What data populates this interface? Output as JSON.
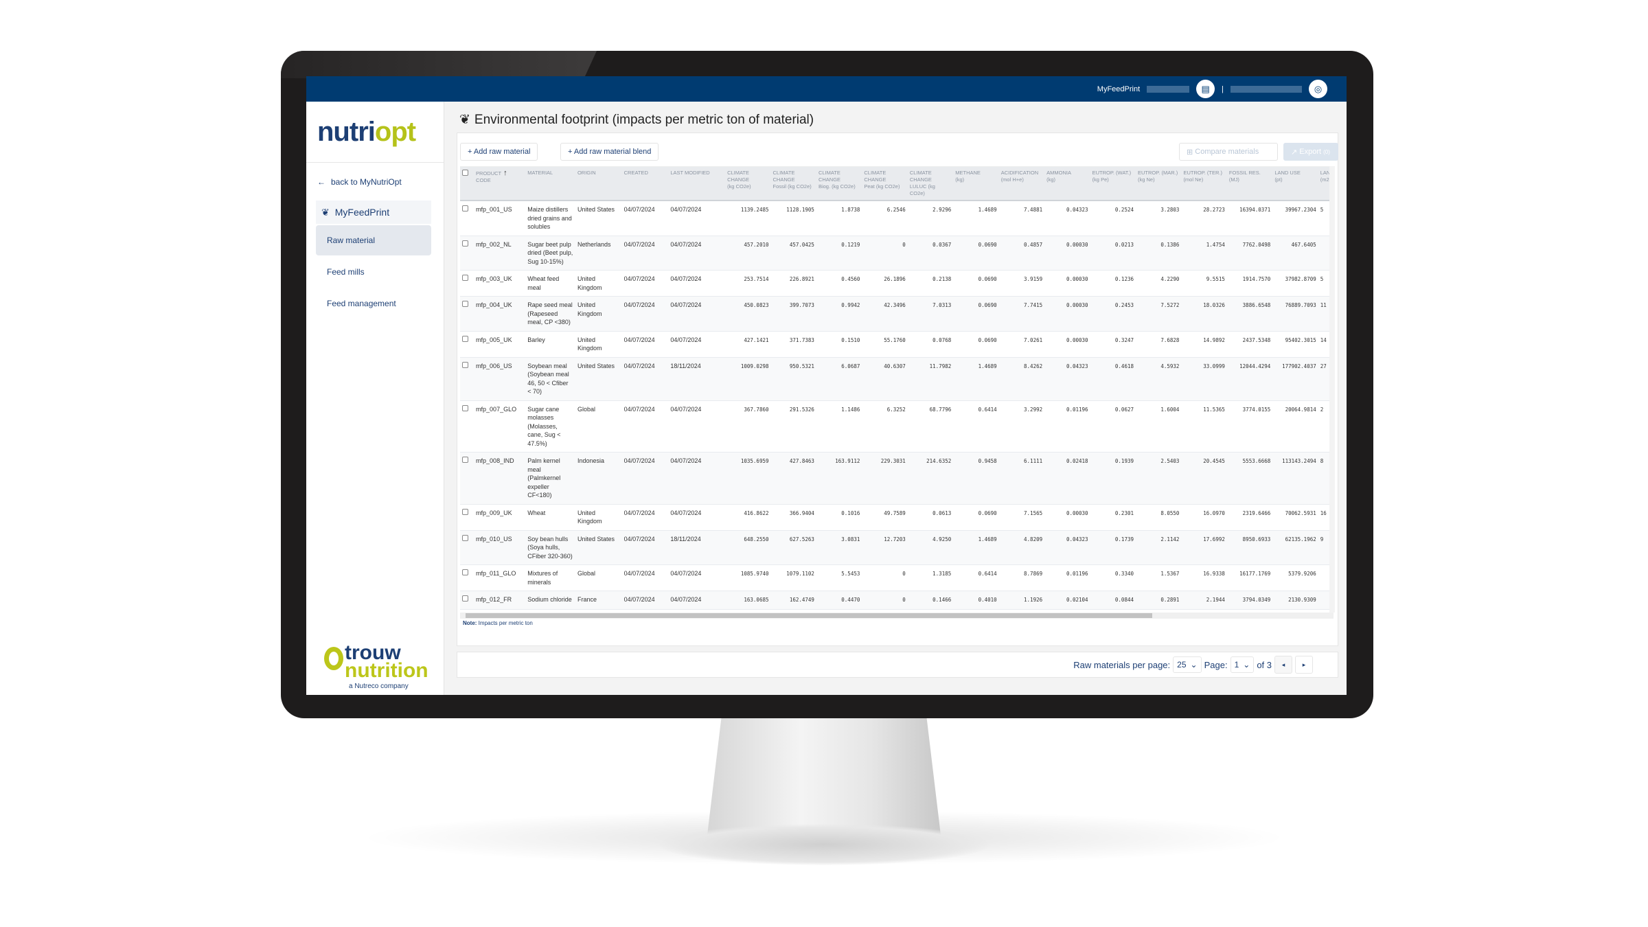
{
  "topbar": {
    "app_label": "MyFeedPrint",
    "separator": "|",
    "icons": [
      "building-icon",
      "user-circle-icon"
    ]
  },
  "sidebar": {
    "logo_text": [
      "nutri",
      "o",
      "pt"
    ],
    "back_label": "back to MyNutriOpt",
    "section_label": "MyFeedPrint",
    "items": [
      {
        "label": "Raw material",
        "active": true
      },
      {
        "label": "Feed mills",
        "active": false
      },
      {
        "label": "Feed management",
        "active": false
      }
    ],
    "footer_logo": {
      "line1": "trouw",
      "line2": "nutrition",
      "line3": "a Nutreco company"
    }
  },
  "page": {
    "title": "Environmental footprint (impacts per metric ton of material)"
  },
  "toolbar": {
    "add_raw_material": "+ Add raw material",
    "add_blend": "+ Add raw material blend",
    "compare": "Compare materials",
    "export": "Export",
    "export_count": "(0)"
  },
  "table": {
    "columns": [
      [
        "PRODUCT",
        "CODE"
      ],
      [
        "MATERIAL",
        ""
      ],
      [
        "ORIGIN",
        ""
      ],
      [
        "CREATED",
        ""
      ],
      [
        "LAST MODIFIED",
        ""
      ],
      [
        "CLIMATE CHANGE",
        "(kg CO2e)"
      ],
      [
        "CLIMATE CHANGE",
        "Fossil (kg CO2e)"
      ],
      [
        "CLIMATE CHANGE",
        "Biog. (kg CO2e)"
      ],
      [
        "CLIMATE CHANGE",
        "Peat (kg CO2e)"
      ],
      [
        "CLIMATE CHANGE",
        "LULUC (kg CO2e)"
      ],
      [
        "METHANE",
        "(kg)"
      ],
      [
        "ACIDIFICATION",
        "(mol H+e)"
      ],
      [
        "AMMONIA",
        "(kg)"
      ],
      [
        "EUTROP. (WAT.)",
        "(kg Pe)"
      ],
      [
        "EUTROP. (MAR.)",
        "(kg Ne)"
      ],
      [
        "EUTROP. (TER.)",
        "(mol Ne)"
      ],
      [
        "FOSSIL RES.",
        "(MJ)"
      ],
      [
        "LAND USE",
        "(pt)"
      ],
      [
        "LAND U",
        "(m2a"
      ]
    ],
    "sort_indicator": "↑",
    "rows": [
      [
        "mfp_001_US",
        "Maize distillers dried grains and solubles",
        "United States",
        "04/07/2024",
        "04/07/2024",
        "1139.2485",
        "1128.1905",
        "1.8738",
        "6.2546",
        "2.9296",
        "1.4689",
        "7.4881",
        "0.04323",
        "0.2524",
        "3.2803",
        "28.2723",
        "16394.0371",
        "39967.2304",
        "5"
      ],
      [
        "mfp_002_NL",
        "Sugar beet pulp dried (Beet pulp, Sug 10-15%)",
        "Netherlands",
        "04/07/2024",
        "04/07/2024",
        "457.2010",
        "457.0425",
        "0.1219",
        "0",
        "0.0367",
        "0.0690",
        "0.4857",
        "0.00030",
        "0.0213",
        "0.1386",
        "1.4754",
        "7762.0498",
        "467.6405",
        ""
      ],
      [
        "mfp_003_UK",
        "Wheat feed meal",
        "United Kingdom",
        "04/07/2024",
        "04/07/2024",
        "253.7514",
        "226.8921",
        "0.4560",
        "26.1896",
        "0.2138",
        "0.0690",
        "3.9159",
        "0.00030",
        "0.1236",
        "4.2290",
        "9.5515",
        "1914.7570",
        "37982.8709",
        "5"
      ],
      [
        "mfp_004_UK",
        "Rape seed meal (Rapeseed meal, CP <380)",
        "United Kingdom",
        "04/07/2024",
        "04/07/2024",
        "450.0823",
        "399.7073",
        "0.9942",
        "42.3496",
        "7.0313",
        "0.0690",
        "7.7415",
        "0.00030",
        "0.2453",
        "7.5272",
        "18.0326",
        "3886.6548",
        "76889.7093",
        "11"
      ],
      [
        "mfp_005_UK",
        "Barley",
        "United Kingdom",
        "04/07/2024",
        "04/07/2024",
        "427.1421",
        "371.7383",
        "0.1510",
        "55.1760",
        "0.0768",
        "0.0690",
        "7.0261",
        "0.00030",
        "0.3247",
        "7.6828",
        "14.9892",
        "2437.5348",
        "95402.3015",
        "14"
      ],
      [
        "mfp_006_US",
        "Soybean meal (Soybean meal 46, 50 < Cfiber < 70)",
        "United States",
        "04/07/2024",
        "18/11/2024",
        "1009.0298",
        "950.5321",
        "6.0687",
        "40.6307",
        "11.7982",
        "1.4689",
        "8.4262",
        "0.04323",
        "0.4618",
        "4.5932",
        "33.0999",
        "12044.4294",
        "177902.4037",
        "27"
      ],
      [
        "mfp_007_GLO",
        "Sugar cane molasses (Molasses, cane, Sug < 47.5%)",
        "Global",
        "04/07/2024",
        "04/07/2024",
        "367.7860",
        "291.5326",
        "1.1486",
        "6.3252",
        "68.7796",
        "0.6414",
        "3.2992",
        "0.01196",
        "0.0627",
        "1.6004",
        "11.5365",
        "3774.0155",
        "20064.9814",
        "2"
      ],
      [
        "mfp_008_IND",
        "Palm kernel meal (Palmkernel expeller CF<180)",
        "Indonesia",
        "04/07/2024",
        "04/07/2024",
        "1035.6959",
        "427.8463",
        "163.9112",
        "229.3031",
        "214.6352",
        "0.9458",
        "6.1111",
        "0.02418",
        "0.1939",
        "2.5403",
        "20.4545",
        "5553.6668",
        "113143.2494",
        "8"
      ],
      [
        "mfp_009_UK",
        "Wheat",
        "United Kingdom",
        "04/07/2024",
        "04/07/2024",
        "416.8622",
        "366.9404",
        "0.1016",
        "49.7589",
        "0.0613",
        "0.0690",
        "7.1565",
        "0.00030",
        "0.2301",
        "8.0550",
        "16.0970",
        "2319.6466",
        "70062.5931",
        "16"
      ],
      [
        "mfp_010_US",
        "Soy bean hulls (Soya hulls, CFiber 320-360)",
        "United States",
        "04/07/2024",
        "18/11/2024",
        "648.2550",
        "627.5263",
        "3.0831",
        "12.7203",
        "4.9250",
        "1.4689",
        "4.8209",
        "0.04323",
        "0.1739",
        "2.1142",
        "17.6992",
        "8950.6933",
        "62135.1962",
        "9"
      ],
      [
        "mfp_011_GLO",
        "Mixtures of minerals",
        "Global",
        "04/07/2024",
        "04/07/2024",
        "1085.9740",
        "1079.1102",
        "5.5453",
        "0",
        "1.3185",
        "0.6414",
        "8.7869",
        "0.01196",
        "0.3340",
        "1.5367",
        "16.9338",
        "16177.1769",
        "5379.9206",
        ""
      ],
      [
        "mfp_012_FR",
        "Sodium chloride",
        "France",
        "04/07/2024",
        "04/07/2024",
        "163.0685",
        "162.4749",
        "0.4470",
        "0",
        "0.1466",
        "0.4010",
        "1.1926",
        "0.02104",
        "0.0844",
        "0.2891",
        "2.1944",
        "3794.0349",
        "2130.9309",
        ""
      ]
    ]
  },
  "note": {
    "label": "Note:",
    "text": " Impacts per metric ton"
  },
  "pagination": {
    "per_page_label": "Raw materials per page:",
    "per_page": "25",
    "page_label": "Page:",
    "page": "1",
    "of_label": "of 3"
  },
  "colors": {
    "topbar": "#003b71",
    "brand_navy": "#1d3f74",
    "brand_lime": "#b5c21a"
  }
}
